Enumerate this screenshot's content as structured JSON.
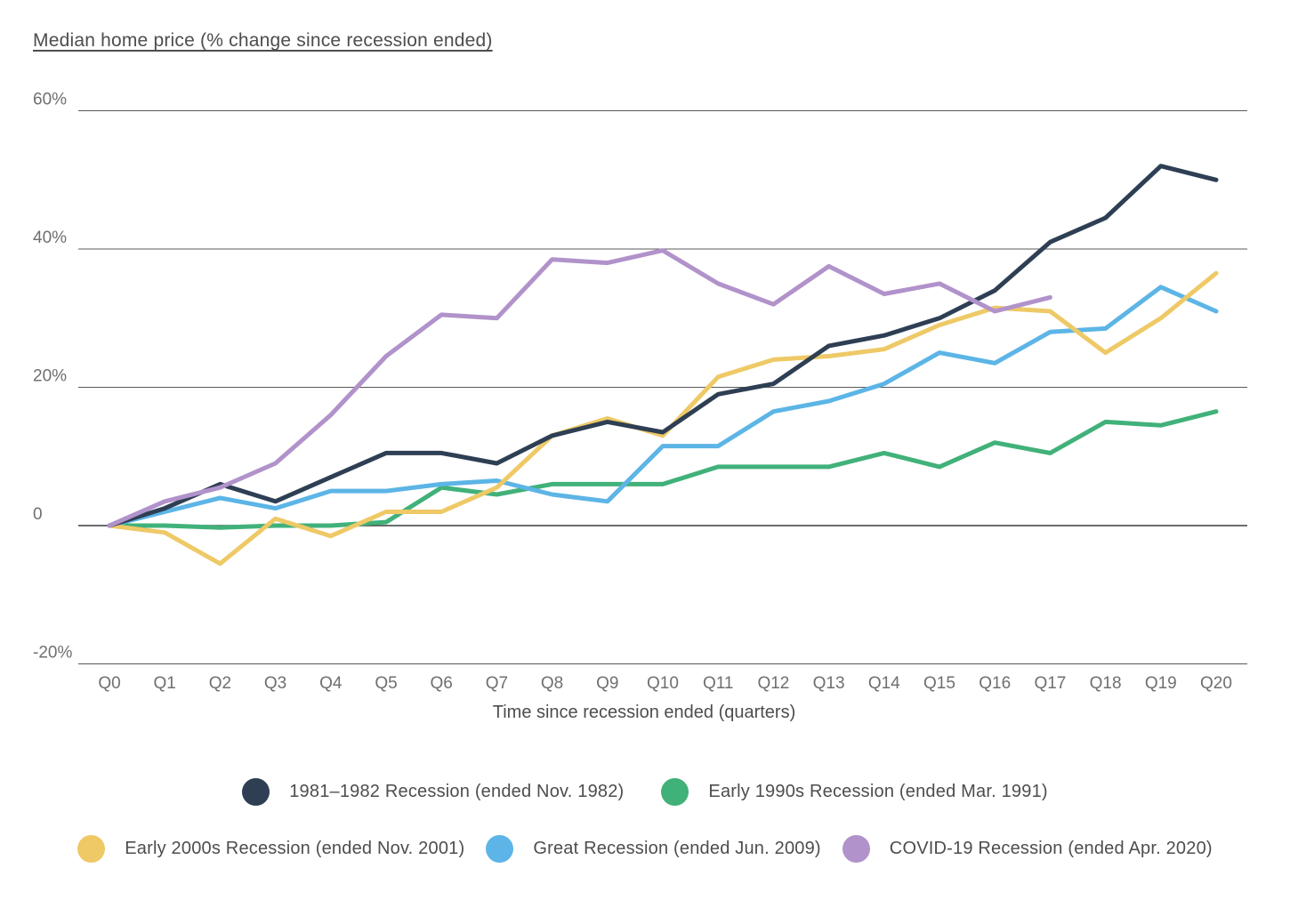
{
  "chart_data": {
    "type": "line",
    "title": "Median home price (% change since recession ended)",
    "xlabel": "Time since recession ended (quarters)",
    "grid": "horizontal",
    "legend_position": "bottom",
    "ylim": [
      -20,
      60
    ],
    "y_ticks": [
      {
        "label": "60%",
        "value": 60
      },
      {
        "label": "40%",
        "value": 40
      },
      {
        "label": "20%",
        "value": 20
      },
      {
        "label": "0",
        "value": 0
      },
      {
        "label": "-20%",
        "value": -20
      }
    ],
    "categories": [
      "Q0",
      "Q1",
      "Q2",
      "Q3",
      "Q4",
      "Q5",
      "Q6",
      "Q7",
      "Q8",
      "Q9",
      "Q10",
      "Q11",
      "Q12",
      "Q13",
      "Q14",
      "Q15",
      "Q16",
      "Q17",
      "Q18",
      "Q19",
      "Q20"
    ],
    "series": [
      {
        "name": "1981–1982 Recession (ended Nov. 1982)",
        "color": "#2e3f54",
        "values": [
          0,
          2.5,
          6,
          3.5,
          7,
          10.5,
          10.5,
          9,
          13,
          15,
          13.5,
          19,
          20.5,
          26,
          27.5,
          30,
          34,
          41,
          44.5,
          52,
          50
        ]
      },
      {
        "name": "Early 1990s Recession (ended Mar. 1991)",
        "color": "#41b17a",
        "values": [
          0,
          0,
          -0.3,
          0,
          0,
          0.5,
          5.5,
          4.5,
          6,
          6,
          6,
          8.5,
          8.5,
          8.5,
          10.5,
          8.5,
          12,
          10.5,
          15,
          14.5,
          16.5
        ]
      },
      {
        "name": "Early 2000s Recession (ended Nov. 2001)",
        "color": "#eec966",
        "values": [
          0,
          -1,
          -5.5,
          1,
          -1.5,
          2,
          2,
          5.5,
          13,
          15.5,
          13,
          21.5,
          24,
          24.5,
          25.5,
          29,
          31.5,
          31,
          25,
          30,
          36.5
        ]
      },
      {
        "name": "Great Recession (ended Jun. 2009)",
        "color": "#5cb5e6",
        "values": [
          0,
          2,
          4,
          2.5,
          5,
          5,
          6,
          6.5,
          4.5,
          3.5,
          11.5,
          11.5,
          16.5,
          18,
          20.5,
          25,
          23.5,
          28,
          28.5,
          34.5,
          31
        ]
      },
      {
        "name": "COVID-19 Recession (ended Apr. 2020)",
        "color": "#b192ca",
        "values": [
          0,
          3.5,
          5.5,
          9,
          16,
          24.5,
          30.5,
          30,
          38.5,
          38,
          39.8,
          35,
          32,
          37.5,
          33.5,
          35,
          31,
          33
        ]
      }
    ]
  },
  "legend": {
    "row1_indices": [
      0,
      1
    ],
    "row2_indices": [
      2,
      3,
      4
    ]
  }
}
